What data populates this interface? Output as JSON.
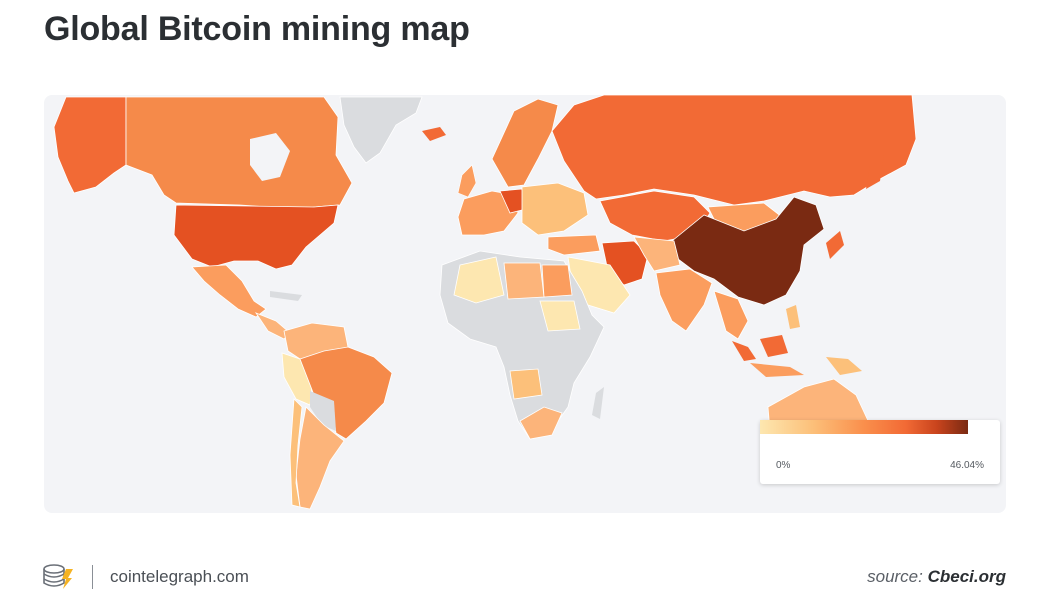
{
  "title": "Global Bitcoin mining map",
  "legend": {
    "min_label": "0%",
    "max_label": "46.04%",
    "min_value": 0,
    "max_value": 46.04,
    "colors": [
      "#fde7b0",
      "#fcc07a",
      "#fa8f4c",
      "#f26a35",
      "#d2461e",
      "#7a2a12"
    ]
  },
  "colors": {
    "no_data": "#dadcdf",
    "background": "#f3f4f7",
    "title_text": "#2b2f33"
  },
  "footer": {
    "logo_icon": "cointelegraph-coins-icon",
    "brand": "cointelegraph.com",
    "source_prefix": "source: ",
    "source_name": "Cbeci.org"
  },
  "regions": [
    {
      "name": "China",
      "share": "high"
    },
    {
      "name": "United States",
      "share": "medium"
    },
    {
      "name": "Russia",
      "share": "medium"
    },
    {
      "name": "Kazakhstan",
      "share": "medium"
    },
    {
      "name": "Malaysia",
      "share": "medium"
    },
    {
      "name": "Iran",
      "share": "medium"
    },
    {
      "name": "Canada",
      "share": "low"
    },
    {
      "name": "Germany",
      "share": "medium"
    }
  ]
}
